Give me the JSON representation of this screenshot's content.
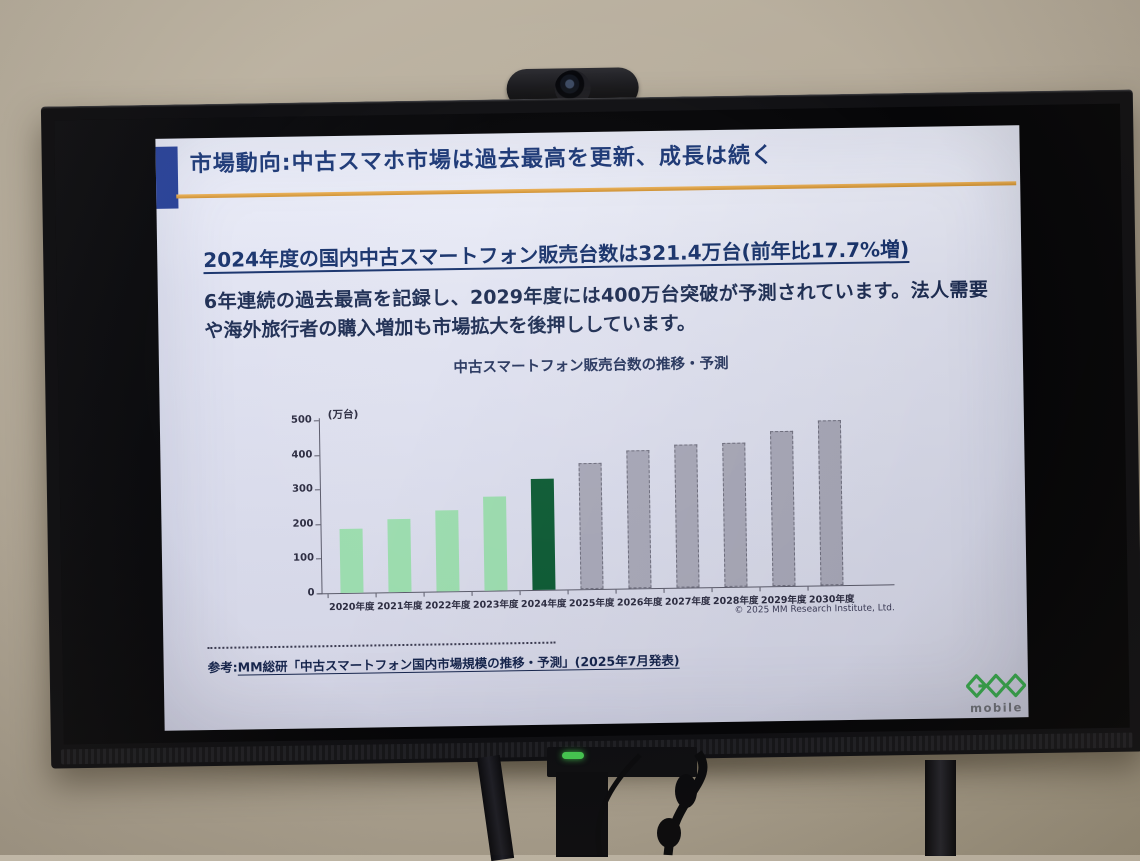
{
  "slide": {
    "title": "市場動向:中古スマホ市場は過去最高を更新、成長は続く",
    "headline": "2024年度の国内中古スマートフォン販売台数は321.4万台(前年比17.7%増)",
    "body": "6年連続の過去最高を記録し、2029年度には400万台突破が予測されています。法人需要や海外旅行者の購入増加も市場拡大を後押ししています。",
    "reference_label": "参考:",
    "reference_link": "MM総研「中古スマートフォン国内市場規模の推移・予測」(2025年7月発表)",
    "logo": {
      "brand": "GEO",
      "sub": "mobile"
    },
    "accent_colors": {
      "title_navy": "#1c3876",
      "accent_blue_block": "#263f95",
      "orange_rule": "#dfa23e",
      "logo_green": "#3aa94f"
    }
  },
  "chart_data": {
    "type": "bar",
    "title": "中古スマートフォン販売台数の推移・予測",
    "unit_label": "(万台)",
    "categories": [
      "2020年度",
      "2021年度",
      "2022年度",
      "2023年度",
      "2024年度",
      "2025年度",
      "2026年度",
      "2027年度",
      "2028年度",
      "2029年度",
      "2030年度"
    ],
    "values": [
      185,
      210,
      235,
      273,
      321.4,
      365,
      398,
      413,
      415,
      448,
      478
    ],
    "roles": [
      "actual",
      "actual",
      "actual",
      "actual",
      "latest",
      "forecast",
      "forecast",
      "forecast",
      "forecast",
      "forecast",
      "forecast"
    ],
    "ylim": [
      0,
      500
    ],
    "yticks": [
      0,
      100,
      200,
      300,
      400,
      500
    ],
    "grid": "off",
    "legend": "none",
    "credit": "© 2025 MM Research Institute, Ltd.",
    "colors": {
      "actual": "#9bdcae",
      "latest": "#0b5a33",
      "forecast": "#a8a8b8",
      "forecast_border": "#6e6e7e"
    }
  }
}
